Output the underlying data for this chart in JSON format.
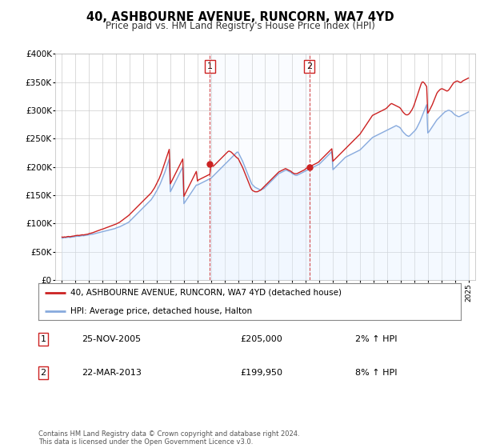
{
  "title": "40, ASHBOURNE AVENUE, RUNCORN, WA7 4YD",
  "subtitle": "Price paid vs. HM Land Registry's House Price Index (HPI)",
  "background_color": "#ffffff",
  "plot_bg_color": "#ffffff",
  "grid_color": "#cccccc",
  "hpi_fill_color": "#ddeeff",
  "red_line_color": "#cc2222",
  "blue_line_color": "#88aadd",
  "dashed_red": "#cc2222",
  "purchase1_x": 2005.92,
  "purchase1_y": 205000,
  "purchase2_x": 2013.25,
  "purchase2_y": 199950,
  "ylim": [
    0,
    400000
  ],
  "xlim": [
    1994.5,
    2025.5
  ],
  "yticks": [
    0,
    50000,
    100000,
    150000,
    200000,
    250000,
    300000,
    350000,
    400000
  ],
  "ytick_labels": [
    "£0",
    "£50K",
    "£100K",
    "£150K",
    "£200K",
    "£250K",
    "£300K",
    "£350K",
    "£400K"
  ],
  "xtick_years": [
    1995,
    1996,
    1997,
    1998,
    1999,
    2000,
    2001,
    2002,
    2003,
    2004,
    2005,
    2006,
    2007,
    2008,
    2009,
    2010,
    2011,
    2012,
    2013,
    2014,
    2015,
    2016,
    2017,
    2018,
    2019,
    2020,
    2021,
    2022,
    2023,
    2024,
    2025
  ],
  "legend_entries": [
    "40, ASHBOURNE AVENUE, RUNCORN, WA7 4YD (detached house)",
    "HPI: Average price, detached house, Halton"
  ],
  "table_data": [
    [
      "1",
      "25-NOV-2005",
      "£205,000",
      "2% ↑ HPI"
    ],
    [
      "2",
      "22-MAR-2013",
      "£199,950",
      "8% ↑ HPI"
    ]
  ],
  "footer": "Contains HM Land Registry data © Crown copyright and database right 2024.\nThis data is licensed under the Open Government Licence v3.0.",
  "hpi_x": [
    1995.0,
    1995.083,
    1995.167,
    1995.25,
    1995.333,
    1995.417,
    1995.5,
    1995.583,
    1995.667,
    1995.75,
    1995.833,
    1995.917,
    1996.0,
    1996.083,
    1996.167,
    1996.25,
    1996.333,
    1996.417,
    1996.5,
    1996.583,
    1996.667,
    1996.75,
    1996.833,
    1996.917,
    1997.0,
    1997.083,
    1997.167,
    1997.25,
    1997.333,
    1997.417,
    1997.5,
    1997.583,
    1997.667,
    1997.75,
    1997.833,
    1997.917,
    1998.0,
    1998.083,
    1998.167,
    1998.25,
    1998.333,
    1998.417,
    1998.5,
    1998.583,
    1998.667,
    1998.75,
    1998.833,
    1998.917,
    1999.0,
    1999.083,
    1999.167,
    1999.25,
    1999.333,
    1999.417,
    1999.5,
    1999.583,
    1999.667,
    1999.75,
    1999.833,
    1999.917,
    2000.0,
    2000.083,
    2000.167,
    2000.25,
    2000.333,
    2000.417,
    2000.5,
    2000.583,
    2000.667,
    2000.75,
    2000.833,
    2000.917,
    2001.0,
    2001.083,
    2001.167,
    2001.25,
    2001.333,
    2001.417,
    2001.5,
    2001.583,
    2001.667,
    2001.75,
    2001.833,
    2001.917,
    2002.0,
    2002.083,
    2002.167,
    2002.25,
    2002.333,
    2002.417,
    2002.5,
    2002.583,
    2002.667,
    2002.75,
    2002.833,
    2002.917,
    2003.0,
    2003.083,
    2003.167,
    2003.25,
    2003.333,
    2003.417,
    2003.5,
    2003.583,
    2003.667,
    2003.75,
    2003.833,
    2003.917,
    2004.0,
    2004.083,
    2004.167,
    2004.25,
    2004.333,
    2004.417,
    2004.5,
    2004.583,
    2004.667,
    2004.75,
    2004.833,
    2004.917,
    2005.0,
    2005.083,
    2005.167,
    2005.25,
    2005.333,
    2005.417,
    2005.5,
    2005.583,
    2005.667,
    2005.75,
    2005.833,
    2005.917,
    2006.0,
    2006.083,
    2006.167,
    2006.25,
    2006.333,
    2006.417,
    2006.5,
    2006.583,
    2006.667,
    2006.75,
    2006.833,
    2006.917,
    2007.0,
    2007.083,
    2007.167,
    2007.25,
    2007.333,
    2007.417,
    2007.5,
    2007.583,
    2007.667,
    2007.75,
    2007.833,
    2007.917,
    2008.0,
    2008.083,
    2008.167,
    2008.25,
    2008.333,
    2008.417,
    2008.5,
    2008.583,
    2008.667,
    2008.75,
    2008.833,
    2008.917,
    2009.0,
    2009.083,
    2009.167,
    2009.25,
    2009.333,
    2009.417,
    2009.5,
    2009.583,
    2009.667,
    2009.75,
    2009.833,
    2009.917,
    2010.0,
    2010.083,
    2010.167,
    2010.25,
    2010.333,
    2010.417,
    2010.5,
    2010.583,
    2010.667,
    2010.75,
    2010.833,
    2010.917,
    2011.0,
    2011.083,
    2011.167,
    2011.25,
    2011.333,
    2011.417,
    2011.5,
    2011.583,
    2011.667,
    2011.75,
    2011.833,
    2011.917,
    2012.0,
    2012.083,
    2012.167,
    2012.25,
    2012.333,
    2012.417,
    2012.5,
    2012.583,
    2012.667,
    2012.75,
    2012.833,
    2012.917,
    2013.0,
    2013.083,
    2013.167,
    2013.25,
    2013.333,
    2013.417,
    2013.5,
    2013.583,
    2013.667,
    2013.75,
    2013.833,
    2013.917,
    2014.0,
    2014.083,
    2014.167,
    2014.25,
    2014.333,
    2014.417,
    2014.5,
    2014.583,
    2014.667,
    2014.75,
    2014.833,
    2014.917,
    2015.0,
    2015.083,
    2015.167,
    2015.25,
    2015.333,
    2015.417,
    2015.5,
    2015.583,
    2015.667,
    2015.75,
    2015.833,
    2015.917,
    2016.0,
    2016.083,
    2016.167,
    2016.25,
    2016.333,
    2016.417,
    2016.5,
    2016.583,
    2016.667,
    2016.75,
    2016.833,
    2016.917,
    2017.0,
    2017.083,
    2017.167,
    2017.25,
    2017.333,
    2017.417,
    2017.5,
    2017.583,
    2017.667,
    2017.75,
    2017.833,
    2017.917,
    2018.0,
    2018.083,
    2018.167,
    2018.25,
    2018.333,
    2018.417,
    2018.5,
    2018.583,
    2018.667,
    2018.75,
    2018.833,
    2018.917,
    2019.0,
    2019.083,
    2019.167,
    2019.25,
    2019.333,
    2019.417,
    2019.5,
    2019.583,
    2019.667,
    2019.75,
    2019.833,
    2019.917,
    2020.0,
    2020.083,
    2020.167,
    2020.25,
    2020.333,
    2020.417,
    2020.5,
    2020.583,
    2020.667,
    2020.75,
    2020.833,
    2020.917,
    2021.0,
    2021.083,
    2021.167,
    2021.25,
    2021.333,
    2021.417,
    2021.5,
    2021.583,
    2021.667,
    2021.75,
    2021.833,
    2021.917,
    2022.0,
    2022.083,
    2022.167,
    2022.25,
    2022.333,
    2022.417,
    2022.5,
    2022.583,
    2022.667,
    2022.75,
    2022.833,
    2022.917,
    2023.0,
    2023.083,
    2023.167,
    2023.25,
    2023.333,
    2023.417,
    2023.5,
    2023.583,
    2023.667,
    2023.75,
    2023.833,
    2023.917,
    2024.0,
    2024.083,
    2024.167,
    2024.25,
    2024.333,
    2024.417,
    2024.5,
    2024.583,
    2024.667,
    2024.75,
    2024.833,
    2024.917,
    2025.0
  ],
  "hpi_y": [
    74000,
    74500,
    75000,
    74800,
    75200,
    75500,
    75800,
    75300,
    75600,
    76000,
    76200,
    76500,
    77000,
    77300,
    77500,
    77200,
    77600,
    78000,
    78500,
    78200,
    78600,
    79000,
    79300,
    79600,
    80000,
    80300,
    80800,
    81000,
    81400,
    82000,
    82500,
    83000,
    83500,
    84000,
    84500,
    85000,
    85500,
    86000,
    86500,
    87000,
    87500,
    88000,
    88500,
    89000,
    89500,
    90000,
    90500,
    91000,
    92000,
    92800,
    93500,
    94000,
    95000,
    96000,
    97000,
    98000,
    99000,
    100000,
    101000,
    102000,
    104000,
    106000,
    108000,
    110000,
    112000,
    114000,
    116000,
    118000,
    120000,
    122000,
    124000,
    126000,
    128000,
    130000,
    132000,
    134000,
    136000,
    138000,
    140000,
    142000,
    145000,
    148000,
    151000,
    155000,
    158000,
    162000,
    166000,
    170000,
    175000,
    180000,
    185000,
    190000,
    196000,
    202000,
    208000,
    214000,
    156000,
    160000,
    164000,
    168000,
    172000,
    176000,
    180000,
    184000,
    188000,
    192000,
    196000,
    200000,
    135000,
    138000,
    141000,
    144000,
    147000,
    150000,
    153000,
    156000,
    159000,
    162000,
    165000,
    168000,
    168000,
    169000,
    170000,
    171000,
    172000,
    173000,
    174000,
    175000,
    176000,
    177000,
    178000,
    179000,
    180000,
    182000,
    184000,
    186000,
    188000,
    190000,
    192000,
    194000,
    196000,
    198000,
    200000,
    202000,
    204000,
    206000,
    208000,
    210000,
    212000,
    214000,
    216000,
    218000,
    220000,
    222000,
    224000,
    226000,
    226000,
    222000,
    218000,
    214000,
    210000,
    205000,
    200000,
    195000,
    190000,
    185000,
    180000,
    175000,
    170000,
    168000,
    166000,
    164000,
    163000,
    162000,
    161000,
    160000,
    159000,
    160000,
    161000,
    162000,
    164000,
    166000,
    168000,
    170000,
    172000,
    174000,
    176000,
    178000,
    180000,
    182000,
    184000,
    186000,
    188000,
    189000,
    190000,
    191000,
    192000,
    193000,
    194000,
    194000,
    193000,
    192000,
    191000,
    190000,
    188000,
    187000,
    186000,
    185000,
    185000,
    186000,
    187000,
    188000,
    189000,
    190000,
    191000,
    192000,
    193000,
    194000,
    195000,
    196000,
    197000,
    198000,
    199000,
    200000,
    201000,
    202000,
    203000,
    204000,
    205000,
    207000,
    209000,
    211000,
    213000,
    215000,
    217000,
    219000,
    221000,
    223000,
    225000,
    227000,
    195000,
    197000,
    199000,
    201000,
    203000,
    205000,
    207000,
    209000,
    211000,
    213000,
    215000,
    217000,
    218000,
    219000,
    220000,
    221000,
    222000,
    223000,
    224000,
    225000,
    226000,
    227000,
    228000,
    229000,
    230000,
    232000,
    234000,
    236000,
    238000,
    240000,
    242000,
    244000,
    246000,
    248000,
    250000,
    252000,
    253000,
    254000,
    255000,
    256000,
    257000,
    258000,
    259000,
    260000,
    261000,
    262000,
    263000,
    264000,
    265000,
    266000,
    267000,
    268000,
    269000,
    270000,
    271000,
    272000,
    273000,
    272000,
    271000,
    270000,
    268000,
    265000,
    262000,
    260000,
    258000,
    256000,
    255000,
    254000,
    255000,
    257000,
    259000,
    261000,
    263000,
    265000,
    268000,
    272000,
    276000,
    280000,
    285000,
    290000,
    295000,
    300000,
    305000,
    310000,
    260000,
    262000,
    265000,
    268000,
    271000,
    274000,
    277000,
    280000,
    283000,
    285000,
    287000,
    289000,
    291000,
    293000,
    295000,
    297000,
    298000,
    299000,
    300000,
    300000,
    299000,
    298000,
    296000,
    294000,
    292000,
    291000,
    290000,
    289000,
    289000,
    290000,
    291000,
    292000,
    293000,
    294000,
    295000,
    296000,
    297000
  ],
  "price_x": [
    1995.0,
    1995.083,
    1995.167,
    1995.25,
    1995.333,
    1995.417,
    1995.5,
    1995.583,
    1995.667,
    1995.75,
    1995.833,
    1995.917,
    1996.0,
    1996.083,
    1996.167,
    1996.25,
    1996.333,
    1996.417,
    1996.5,
    1996.583,
    1996.667,
    1996.75,
    1996.833,
    1996.917,
    1997.0,
    1997.083,
    1997.167,
    1997.25,
    1997.333,
    1997.417,
    1997.5,
    1997.583,
    1997.667,
    1997.75,
    1997.833,
    1997.917,
    1998.0,
    1998.083,
    1998.167,
    1998.25,
    1998.333,
    1998.417,
    1998.5,
    1998.583,
    1998.667,
    1998.75,
    1998.833,
    1998.917,
    1999.0,
    1999.083,
    1999.167,
    1999.25,
    1999.333,
    1999.417,
    1999.5,
    1999.583,
    1999.667,
    1999.75,
    1999.833,
    1999.917,
    2000.0,
    2000.083,
    2000.167,
    2000.25,
    2000.333,
    2000.417,
    2000.5,
    2000.583,
    2000.667,
    2000.75,
    2000.833,
    2000.917,
    2001.0,
    2001.083,
    2001.167,
    2001.25,
    2001.333,
    2001.417,
    2001.5,
    2001.583,
    2001.667,
    2001.75,
    2001.833,
    2001.917,
    2002.0,
    2002.083,
    2002.167,
    2002.25,
    2002.333,
    2002.417,
    2002.5,
    2002.583,
    2002.667,
    2002.75,
    2002.833,
    2002.917,
    2003.0,
    2003.083,
    2003.167,
    2003.25,
    2003.333,
    2003.417,
    2003.5,
    2003.583,
    2003.667,
    2003.75,
    2003.833,
    2003.917,
    2004.0,
    2004.083,
    2004.167,
    2004.25,
    2004.333,
    2004.417,
    2004.5,
    2004.583,
    2004.667,
    2004.75,
    2004.833,
    2004.917,
    2005.0,
    2005.083,
    2005.167,
    2005.25,
    2005.333,
    2005.417,
    2005.5,
    2005.583,
    2005.667,
    2005.75,
    2005.833,
    2005.917,
    2006.0,
    2006.083,
    2006.167,
    2006.25,
    2006.333,
    2006.417,
    2006.5,
    2006.583,
    2006.667,
    2006.75,
    2006.833,
    2006.917,
    2007.0,
    2007.083,
    2007.167,
    2007.25,
    2007.333,
    2007.417,
    2007.5,
    2007.583,
    2007.667,
    2007.75,
    2007.833,
    2007.917,
    2008.0,
    2008.083,
    2008.167,
    2008.25,
    2008.333,
    2008.417,
    2008.5,
    2008.583,
    2008.667,
    2008.75,
    2008.833,
    2008.917,
    2009.0,
    2009.083,
    2009.167,
    2009.25,
    2009.333,
    2009.417,
    2009.5,
    2009.583,
    2009.667,
    2009.75,
    2009.833,
    2009.917,
    2010.0,
    2010.083,
    2010.167,
    2010.25,
    2010.333,
    2010.417,
    2010.5,
    2010.583,
    2010.667,
    2010.75,
    2010.833,
    2010.917,
    2011.0,
    2011.083,
    2011.167,
    2011.25,
    2011.333,
    2011.417,
    2011.5,
    2011.583,
    2011.667,
    2011.75,
    2011.833,
    2011.917,
    2012.0,
    2012.083,
    2012.167,
    2012.25,
    2012.333,
    2012.417,
    2012.5,
    2012.583,
    2012.667,
    2012.75,
    2012.833,
    2012.917,
    2013.0,
    2013.083,
    2013.167,
    2013.25,
    2013.333,
    2013.417,
    2013.5,
    2013.583,
    2013.667,
    2013.75,
    2013.833,
    2013.917,
    2014.0,
    2014.083,
    2014.167,
    2014.25,
    2014.333,
    2014.417,
    2014.5,
    2014.583,
    2014.667,
    2014.75,
    2014.833,
    2014.917,
    2015.0,
    2015.083,
    2015.167,
    2015.25,
    2015.333,
    2015.417,
    2015.5,
    2015.583,
    2015.667,
    2015.75,
    2015.833,
    2015.917,
    2016.0,
    2016.083,
    2016.167,
    2016.25,
    2016.333,
    2016.417,
    2016.5,
    2016.583,
    2016.667,
    2016.75,
    2016.833,
    2016.917,
    2017.0,
    2017.083,
    2017.167,
    2017.25,
    2017.333,
    2017.417,
    2017.5,
    2017.583,
    2017.667,
    2017.75,
    2017.833,
    2017.917,
    2018.0,
    2018.083,
    2018.167,
    2018.25,
    2018.333,
    2018.417,
    2018.5,
    2018.583,
    2018.667,
    2018.75,
    2018.833,
    2018.917,
    2019.0,
    2019.083,
    2019.167,
    2019.25,
    2019.333,
    2019.417,
    2019.5,
    2019.583,
    2019.667,
    2019.75,
    2019.833,
    2019.917,
    2020.0,
    2020.083,
    2020.167,
    2020.25,
    2020.333,
    2020.417,
    2020.5,
    2020.583,
    2020.667,
    2020.75,
    2020.833,
    2020.917,
    2021.0,
    2021.083,
    2021.167,
    2021.25,
    2021.333,
    2021.417,
    2021.5,
    2021.583,
    2021.667,
    2021.75,
    2021.833,
    2021.917,
    2022.0,
    2022.083,
    2022.167,
    2022.25,
    2022.333,
    2022.417,
    2022.5,
    2022.583,
    2022.667,
    2022.75,
    2022.833,
    2022.917,
    2023.0,
    2023.083,
    2023.167,
    2023.25,
    2023.333,
    2023.417,
    2023.5,
    2023.583,
    2023.667,
    2023.75,
    2023.833,
    2023.917,
    2024.0,
    2024.083,
    2024.167,
    2024.25,
    2024.333,
    2024.417,
    2024.5,
    2024.583,
    2024.667,
    2024.75,
    2024.833,
    2024.917,
    2025.0
  ],
  "price_y": [
    76000,
    75500,
    76200,
    75800,
    76300,
    76800,
    77000,
    76500,
    77000,
    77400,
    77600,
    78000,
    78500,
    78800,
    79000,
    78700,
    79100,
    79500,
    80000,
    79700,
    80100,
    80500,
    80800,
    81100,
    82000,
    82500,
    83000,
    83500,
    84200,
    85000,
    85800,
    86500,
    87200,
    88000,
    88700,
    89500,
    90000,
    90800,
    91500,
    92200,
    93000,
    93800,
    94500,
    95200,
    96000,
    96800,
    97500,
    98200,
    99000,
    100000,
    101000,
    102000,
    103500,
    105000,
    106500,
    108000,
    109500,
    111000,
    112500,
    114000,
    116000,
    118000,
    120000,
    122000,
    124000,
    126000,
    128000,
    130000,
    132000,
    134000,
    136000,
    138000,
    140000,
    142000,
    144000,
    146000,
    148000,
    150000,
    152000,
    154000,
    157000,
    160000,
    163000,
    167000,
    171000,
    175000,
    179000,
    184000,
    189000,
    195000,
    201000,
    207000,
    213000,
    219000,
    225000,
    231000,
    170000,
    174000,
    178000,
    182000,
    186000,
    190000,
    194000,
    198000,
    202000,
    206000,
    210000,
    214000,
    148000,
    152000,
    156000,
    160000,
    164000,
    168000,
    172000,
    176000,
    180000,
    184000,
    188000,
    192000,
    175000,
    177000,
    178000,
    179000,
    180000,
    181000,
    182000,
    183000,
    184000,
    185000,
    186000,
    187000,
    205000,
    202000,
    201000,
    203000,
    205000,
    207000,
    209000,
    211000,
    213000,
    215000,
    217000,
    219000,
    221000,
    223000,
    225000,
    227000,
    228000,
    227000,
    226000,
    224000,
    222000,
    220000,
    218000,
    216000,
    215000,
    211000,
    207000,
    203000,
    199000,
    194000,
    189000,
    184000,
    179000,
    174000,
    169000,
    164000,
    160000,
    158000,
    157000,
    156000,
    156000,
    156000,
    157000,
    158000,
    159000,
    161000,
    163000,
    165000,
    167000,
    169000,
    171000,
    173000,
    175000,
    177000,
    179000,
    181000,
    183000,
    185000,
    187000,
    189000,
    191000,
    192000,
    193000,
    194000,
    195000,
    196000,
    197000,
    196000,
    195000,
    194000,
    193000,
    192000,
    190000,
    189000,
    188000,
    188000,
    188000,
    189000,
    190000,
    191000,
    192000,
    193000,
    194000,
    195000,
    197000,
    198000,
    199000,
    199950,
    201000,
    202000,
    203000,
    204000,
    205000,
    206000,
    207000,
    208000,
    210000,
    212000,
    214000,
    216000,
    218000,
    220000,
    222000,
    224000,
    226000,
    228000,
    230000,
    232000,
    210000,
    212000,
    214000,
    216000,
    218000,
    220000,
    222000,
    224000,
    226000,
    228000,
    230000,
    232000,
    234000,
    236000,
    238000,
    240000,
    242000,
    244000,
    246000,
    248000,
    250000,
    252000,
    254000,
    256000,
    258000,
    261000,
    264000,
    267000,
    270000,
    273000,
    276000,
    279000,
    282000,
    285000,
    288000,
    291000,
    292000,
    293000,
    294000,
    295000,
    296000,
    297000,
    298000,
    299000,
    300000,
    301000,
    302000,
    303000,
    305000,
    307000,
    309000,
    311000,
    312000,
    311000,
    310000,
    309000,
    308000,
    307000,
    306000,
    305000,
    303000,
    300000,
    297000,
    295000,
    293000,
    292000,
    292000,
    293000,
    295000,
    298000,
    301000,
    305000,
    310000,
    316000,
    322000,
    328000,
    334000,
    340000,
    346000,
    350000,
    350000,
    348000,
    345000,
    342000,
    295000,
    298000,
    302000,
    306000,
    310000,
    315000,
    320000,
    325000,
    330000,
    333000,
    335000,
    337000,
    338000,
    338000,
    337000,
    336000,
    335000,
    334000,
    335000,
    337000,
    340000,
    343000,
    346000,
    349000,
    350000,
    351000,
    352000,
    351000,
    350000,
    349000,
    350000,
    352000,
    353000,
    354000,
    355000,
    356000,
    357000
  ]
}
